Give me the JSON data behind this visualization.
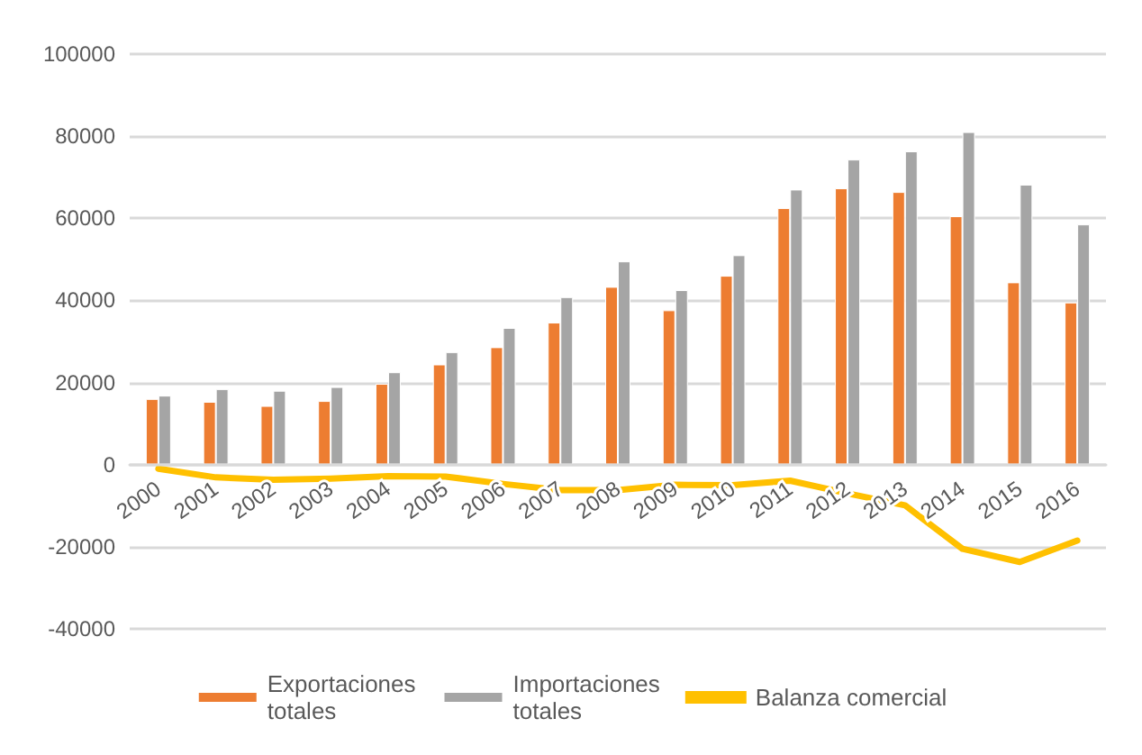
{
  "chart_data": {
    "type": "bar",
    "categories": [
      "2000",
      "2001",
      "2002",
      "2003",
      "2004",
      "2005",
      "2006",
      "2007",
      "2008",
      "2009",
      "2010",
      "2011",
      "2012",
      "2013",
      "2014",
      "2015",
      "2016"
    ],
    "series": [
      {
        "name": "Exportaciones totales",
        "color": "#ed7d31",
        "values": [
          16000,
          15300,
          14300,
          15500,
          19700,
          24400,
          28600,
          34600,
          43300,
          37600,
          46000,
          62500,
          67300,
          66400,
          60500,
          44400,
          39500
        ]
      },
      {
        "name": "Importaciones totales",
        "color": "#a5a5a5",
        "values": [
          16800,
          18400,
          18000,
          18900,
          22500,
          27400,
          33300,
          40800,
          49500,
          42500,
          51000,
          67000,
          74300,
          76300,
          81000,
          68200,
          58500
        ]
      },
      {
        "name": "Balanza comercial",
        "type": "line",
        "color": "#ffc000",
        "marker": "none",
        "values": [
          -1000,
          -3100,
          -3700,
          -3400,
          -2800,
          -2900,
          -4700,
          -6200,
          -6200,
          -4900,
          -5000,
          -3900,
          -7000,
          -9900,
          -20500,
          -23700,
          -18500
        ]
      }
    ],
    "ylim": [
      -40000,
      100000
    ],
    "yticks": [
      -40000,
      -20000,
      0,
      20000,
      40000,
      60000,
      80000,
      100000
    ],
    "grid": "y",
    "legend": "bottom"
  }
}
